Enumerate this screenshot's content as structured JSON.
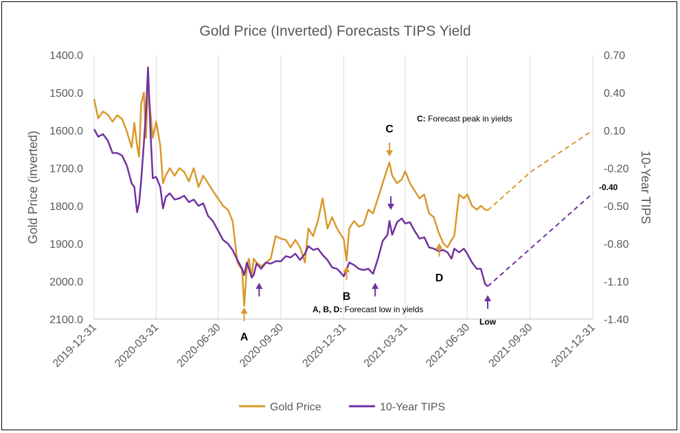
{
  "chart_data": {
    "type": "line",
    "title": "Gold Price (Inverted) Forecasts TIPS Yield",
    "ylabel": "Gold Price (inverted)",
    "y2label": "10-Year TIPS",
    "x_ticks": [
      "2019-12-31",
      "2020-03-31",
      "2020-06-30",
      "2020-09-30",
      "2020-12-31",
      "2021-03-31",
      "2021-06-30",
      "2021-09-30",
      "2021-12-31"
    ],
    "y_ticks": [
      "1400.0",
      "1500.0",
      "1600.0",
      "1700.0",
      "1800.0",
      "1900.0",
      "2000.0",
      "2100.0"
    ],
    "y2_ticks": [
      "0.70",
      "0.40",
      "0.10",
      "-0.20",
      "-0.50",
      "-0.80",
      "-1.10",
      "-1.40"
    ],
    "ylim": [
      1400,
      2100
    ],
    "y_inverted": true,
    "y2lim": [
      -1.4,
      0.7
    ],
    "grid": "vertical",
    "legend_position": "bottom",
    "colors": {
      "gold": "#D9982A",
      "tips": "#7030A0"
    },
    "series": [
      {
        "name": "Gold Price",
        "axis": "left",
        "style": "solid",
        "points": [
          [
            "2019-12-31",
            1517
          ],
          [
            "2020-01-06",
            1568
          ],
          [
            "2020-01-13",
            1550
          ],
          [
            "2020-01-20",
            1558
          ],
          [
            "2020-01-27",
            1577
          ],
          [
            "2020-02-03",
            1560
          ],
          [
            "2020-02-10",
            1570
          ],
          [
            "2020-02-17",
            1603
          ],
          [
            "2020-02-24",
            1645
          ],
          [
            "2020-02-28",
            1580
          ],
          [
            "2020-03-03",
            1640
          ],
          [
            "2020-03-06",
            1670
          ],
          [
            "2020-03-09",
            1530
          ],
          [
            "2020-03-13",
            1500
          ],
          [
            "2020-03-16",
            1620
          ],
          [
            "2020-03-19",
            1480
          ],
          [
            "2020-03-23",
            1560
          ],
          [
            "2020-03-26",
            1620
          ],
          [
            "2020-03-31",
            1577
          ],
          [
            "2020-04-06",
            1640
          ],
          [
            "2020-04-10",
            1740
          ],
          [
            "2020-04-14",
            1720
          ],
          [
            "2020-04-20",
            1700
          ],
          [
            "2020-04-27",
            1720
          ],
          [
            "2020-05-04",
            1700
          ],
          [
            "2020-05-11",
            1710
          ],
          [
            "2020-05-18",
            1735
          ],
          [
            "2020-05-25",
            1700
          ],
          [
            "2020-06-01",
            1750
          ],
          [
            "2020-06-08",
            1720
          ],
          [
            "2020-06-15",
            1740
          ],
          [
            "2020-06-22",
            1760
          ],
          [
            "2020-06-30",
            1781
          ],
          [
            "2020-07-07",
            1800
          ],
          [
            "2020-07-14",
            1810
          ],
          [
            "2020-07-21",
            1840
          ],
          [
            "2020-07-28",
            1950
          ],
          [
            "2020-08-04",
            1970
          ],
          [
            "2020-08-07",
            2065
          ],
          [
            "2020-08-11",
            1960
          ],
          [
            "2020-08-14",
            1940
          ],
          [
            "2020-08-18",
            1990
          ],
          [
            "2020-08-21",
            1940
          ],
          [
            "2020-08-25",
            1950
          ],
          [
            "2020-09-01",
            1960
          ],
          [
            "2020-09-08",
            1950
          ],
          [
            "2020-09-15",
            1940
          ],
          [
            "2020-09-22",
            1880
          ],
          [
            "2020-09-30",
            1887
          ],
          [
            "2020-10-07",
            1890
          ],
          [
            "2020-10-14",
            1910
          ],
          [
            "2020-10-21",
            1890
          ],
          [
            "2020-10-28",
            1910
          ],
          [
            "2020-11-04",
            1950
          ],
          [
            "2020-11-09",
            1860
          ],
          [
            "2020-11-16",
            1880
          ],
          [
            "2020-11-23",
            1840
          ],
          [
            "2020-11-30",
            1780
          ],
          [
            "2020-12-07",
            1860
          ],
          [
            "2020-12-14",
            1830
          ],
          [
            "2020-12-21",
            1860
          ],
          [
            "2020-12-28",
            1880
          ],
          [
            "2020-12-31",
            1888
          ],
          [
            "2021-01-04",
            1945
          ],
          [
            "2021-01-08",
            1860
          ],
          [
            "2021-01-15",
            1840
          ],
          [
            "2021-01-22",
            1855
          ],
          [
            "2021-01-29",
            1850
          ],
          [
            "2021-02-05",
            1810
          ],
          [
            "2021-02-12",
            1820
          ],
          [
            "2021-02-19",
            1780
          ],
          [
            "2021-02-26",
            1740
          ],
          [
            "2021-03-05",
            1700
          ],
          [
            "2021-03-08",
            1685
          ],
          [
            "2021-03-12",
            1720
          ],
          [
            "2021-03-19",
            1740
          ],
          [
            "2021-03-26",
            1730
          ],
          [
            "2021-03-31",
            1708
          ],
          [
            "2021-04-07",
            1740
          ],
          [
            "2021-04-14",
            1760
          ],
          [
            "2021-04-21",
            1780
          ],
          [
            "2021-04-28",
            1770
          ],
          [
            "2021-05-05",
            1820
          ],
          [
            "2021-05-12",
            1830
          ],
          [
            "2021-05-19",
            1870
          ],
          [
            "2021-05-26",
            1900
          ],
          [
            "2021-06-01",
            1910
          ],
          [
            "2021-06-07",
            1890
          ],
          [
            "2021-06-11",
            1880
          ],
          [
            "2021-06-18",
            1770
          ],
          [
            "2021-06-25",
            1780
          ],
          [
            "2021-06-30",
            1770
          ],
          [
            "2021-07-07",
            1800
          ],
          [
            "2021-07-14",
            1810
          ],
          [
            "2021-07-20",
            1800
          ],
          [
            "2021-07-26",
            1810
          ],
          [
            "2021-07-30",
            1812
          ]
        ]
      },
      {
        "name": "Gold Price forecast",
        "axis": "left",
        "style": "dashed",
        "points": [
          [
            "2021-07-30",
            1812
          ],
          [
            "2021-10-01",
            1710
          ],
          [
            "2021-12-31",
            1600
          ]
        ]
      },
      {
        "name": "10-Year TIPS",
        "axis": "right",
        "style": "solid",
        "points": [
          [
            "2019-12-31",
            0.11
          ],
          [
            "2020-01-06",
            0.05
          ],
          [
            "2020-01-13",
            0.07
          ],
          [
            "2020-01-20",
            0.02
          ],
          [
            "2020-01-27",
            -0.08
          ],
          [
            "2020-02-03",
            -0.08
          ],
          [
            "2020-02-10",
            -0.1
          ],
          [
            "2020-02-17",
            -0.18
          ],
          [
            "2020-02-24",
            -0.32
          ],
          [
            "2020-02-28",
            -0.35
          ],
          [
            "2020-03-03",
            -0.55
          ],
          [
            "2020-03-06",
            -0.48
          ],
          [
            "2020-03-09",
            -0.3
          ],
          [
            "2020-03-13",
            0.0
          ],
          [
            "2020-03-16",
            0.25
          ],
          [
            "2020-03-19",
            0.6
          ],
          [
            "2020-03-23",
            0.05
          ],
          [
            "2020-03-26",
            -0.28
          ],
          [
            "2020-03-31",
            -0.27
          ],
          [
            "2020-04-06",
            -0.35
          ],
          [
            "2020-04-10",
            -0.52
          ],
          [
            "2020-04-14",
            -0.43
          ],
          [
            "2020-04-20",
            -0.4
          ],
          [
            "2020-04-27",
            -0.45
          ],
          [
            "2020-05-04",
            -0.44
          ],
          [
            "2020-05-11",
            -0.42
          ],
          [
            "2020-05-18",
            -0.47
          ],
          [
            "2020-05-25",
            -0.45
          ],
          [
            "2020-06-01",
            -0.5
          ],
          [
            "2020-06-08",
            -0.48
          ],
          [
            "2020-06-15",
            -0.58
          ],
          [
            "2020-06-22",
            -0.62
          ],
          [
            "2020-06-30",
            -0.7
          ],
          [
            "2020-07-07",
            -0.77
          ],
          [
            "2020-07-14",
            -0.8
          ],
          [
            "2020-07-21",
            -0.85
          ],
          [
            "2020-07-28",
            -0.93
          ],
          [
            "2020-08-04",
            -1.0
          ],
          [
            "2020-08-07",
            -1.05
          ],
          [
            "2020-08-11",
            -0.95
          ],
          [
            "2020-08-14",
            -1.0
          ],
          [
            "2020-08-18",
            -1.07
          ],
          [
            "2020-08-21",
            -1.05
          ],
          [
            "2020-08-25",
            -0.96
          ],
          [
            "2020-09-01",
            -1.0
          ],
          [
            "2020-09-08",
            -0.95
          ],
          [
            "2020-09-15",
            -0.96
          ],
          [
            "2020-09-22",
            -0.94
          ],
          [
            "2020-09-30",
            -0.94
          ],
          [
            "2020-10-07",
            -0.9
          ],
          [
            "2020-10-14",
            -0.91
          ],
          [
            "2020-10-21",
            -0.88
          ],
          [
            "2020-10-28",
            -0.93
          ],
          [
            "2020-11-04",
            -0.88
          ],
          [
            "2020-11-09",
            -0.82
          ],
          [
            "2020-11-16",
            -0.85
          ],
          [
            "2020-11-23",
            -0.84
          ],
          [
            "2020-11-30",
            -0.89
          ],
          [
            "2020-12-07",
            -0.93
          ],
          [
            "2020-12-14",
            -0.99
          ],
          [
            "2020-12-21",
            -1.0
          ],
          [
            "2020-12-28",
            -1.04
          ],
          [
            "2020-12-31",
            -1.06
          ],
          [
            "2021-01-04",
            -1.01
          ],
          [
            "2021-01-08",
            -0.95
          ],
          [
            "2021-01-15",
            -0.97
          ],
          [
            "2021-01-22",
            -1.0
          ],
          [
            "2021-01-29",
            -1.01
          ],
          [
            "2021-02-05",
            -1.0
          ],
          [
            "2021-02-12",
            -1.04
          ],
          [
            "2021-02-19",
            -0.92
          ],
          [
            "2021-02-26",
            -0.78
          ],
          [
            "2021-03-05",
            -0.73
          ],
          [
            "2021-03-08",
            -0.62
          ],
          [
            "2021-03-12",
            -0.73
          ],
          [
            "2021-03-19",
            -0.63
          ],
          [
            "2021-03-26",
            -0.6
          ],
          [
            "2021-03-31",
            -0.64
          ],
          [
            "2021-04-07",
            -0.63
          ],
          [
            "2021-04-14",
            -0.7
          ],
          [
            "2021-04-21",
            -0.76
          ],
          [
            "2021-04-28",
            -0.75
          ],
          [
            "2021-05-05",
            -0.83
          ],
          [
            "2021-05-12",
            -0.84
          ],
          [
            "2021-05-19",
            -0.86
          ],
          [
            "2021-05-26",
            -0.85
          ],
          [
            "2021-06-01",
            -0.87
          ],
          [
            "2021-06-07",
            -0.92
          ],
          [
            "2021-06-11",
            -0.84
          ],
          [
            "2021-06-18",
            -0.87
          ],
          [
            "2021-06-25",
            -0.84
          ],
          [
            "2021-06-30",
            -0.88
          ],
          [
            "2021-07-07",
            -0.95
          ],
          [
            "2021-07-14",
            -1.0
          ],
          [
            "2021-07-20",
            -1.0
          ],
          [
            "2021-07-26",
            -1.12
          ],
          [
            "2021-07-30",
            -1.14
          ]
        ]
      },
      {
        "name": "10-Year TIPS forecast",
        "axis": "right",
        "style": "dashed",
        "points": [
          [
            "2021-07-30",
            -1.14
          ],
          [
            "2021-12-31",
            -0.4
          ]
        ]
      }
    ],
    "legend": [
      {
        "label": "Gold Price",
        "series": "gold"
      },
      {
        "label": "10-Year TIPS",
        "series": "tips"
      }
    ],
    "annotations": {
      "end_label": {
        "text": "-0.40",
        "x": "2021-12-31",
        "y2": -0.4
      },
      "note_c": {
        "letter": "C:",
        "text": " Forecast peak in yields"
      },
      "note_abd": {
        "letter": "A, B, D:",
        "text": " Forecast low in yields"
      },
      "markers": [
        {
          "text": "A",
          "x": "2020-08-07",
          "arrow": "up",
          "color": "gold"
        },
        {
          "text": "",
          "x": "2020-08-29",
          "arrow": "up",
          "color": "tips"
        },
        {
          "text": "B",
          "x": "2021-01-04",
          "arrow": "up",
          "color": "gold"
        },
        {
          "text": "",
          "x": "2021-02-15",
          "arrow": "up",
          "color": "tips"
        },
        {
          "text": "C",
          "x": "2021-03-08",
          "arrow": "down",
          "color": "gold"
        },
        {
          "text": "",
          "x": "2021-03-10",
          "arrow": "down",
          "color": "tips"
        },
        {
          "text": "D",
          "x": "2021-05-20",
          "arrow": "up",
          "color": "gold"
        },
        {
          "text": "Low",
          "x": "2021-07-30",
          "arrow": "up",
          "color": "tips"
        }
      ]
    }
  }
}
